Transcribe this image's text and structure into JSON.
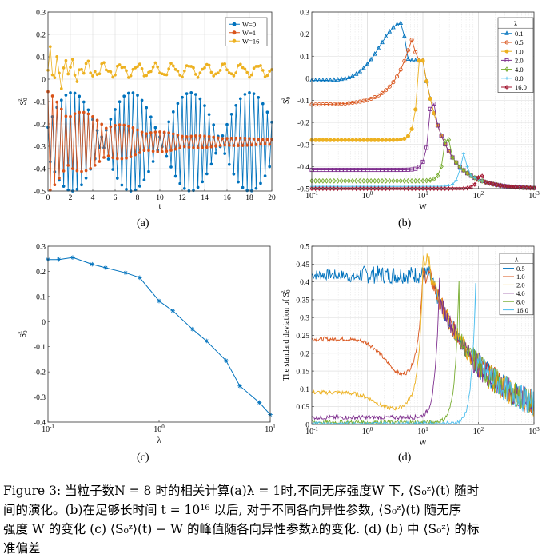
{
  "panels": [
    {
      "label": "(a)",
      "chart_data": {
        "type": "line",
        "xlabel": "t",
        "ylabel": "S_0^z",
        "xlim": [
          0,
          20
        ],
        "ylim": [
          -0.5,
          0.3
        ],
        "xticks": [
          "0",
          "2",
          "4",
          "6",
          "8",
          "10",
          "12",
          "14",
          "16",
          "18",
          "20"
        ],
        "yticks": [
          "-0.5",
          "-0.4",
          "-0.3",
          "-0.2",
          "-0.1",
          "0",
          "0.1",
          "0.2",
          "0.3"
        ],
        "legend_position": "top-right",
        "grid": true,
        "series": [
          {
            "name": "W=0",
            "color": "#0072BD",
            "marker": "o",
            "envelope_min": -0.5,
            "envelope_max": -0.06,
            "center": -0.28,
            "beat_period": 5.3
          },
          {
            "name": "W=1",
            "color": "#D95319",
            "marker": "o",
            "envelope_min": -0.5,
            "envelope_max": -0.06,
            "center": -0.28,
            "decay_time": 6
          },
          {
            "name": "W=16",
            "color": "#EDB120",
            "marker": "o",
            "envelope_min": -0.07,
            "envelope_max": 0.21,
            "center": 0.04,
            "decay_time": 2
          }
        ]
      }
    },
    {
      "label": "(b)",
      "chart_data": {
        "type": "line",
        "xlabel": "W",
        "ylabel": "S_0^z",
        "xscale": "log",
        "xlim": [
          0.1,
          1000
        ],
        "ylim": [
          -0.5,
          0.3
        ],
        "xticks": [
          "10^-1",
          "10^0",
          "10^1",
          "10^2",
          "10^3"
        ],
        "yticks": [
          "-0.5",
          "-0.4",
          "-0.3",
          "-0.2",
          "-0.1",
          "0",
          "0.1",
          "0.2",
          "0.3"
        ],
        "legend_title": "λ",
        "legend_position": "top-right",
        "grid": true,
        "series": [
          {
            "name": "0.1",
            "color": "#0072BD",
            "marker": "triangle",
            "base": -0.01,
            "peak_W": 4.2,
            "peak": 0.25
          },
          {
            "name": "0.5",
            "color": "#D95319",
            "marker": "circle",
            "base": -0.12,
            "peak_W": 6.2,
            "peak": 0.18
          },
          {
            "name": "1.0",
            "color": "#EDB120",
            "marker": "dot",
            "base": -0.28,
            "peak_W": 8.5,
            "peak": 0.08
          },
          {
            "name": "2.0",
            "color": "#7E2F8E",
            "marker": "square",
            "base": -0.415,
            "peak_W": 14,
            "peak": -0.08
          },
          {
            "name": "4.0",
            "color": "#77AC30",
            "marker": "diamond",
            "base": -0.465,
            "peak_W": 26,
            "peak": -0.24
          },
          {
            "name": "8.0",
            "color": "#4DBEEE",
            "marker": "plus",
            "base": -0.49,
            "peak_W": 52,
            "peak": -0.33
          },
          {
            "name": "16.0",
            "color": "#A2142F",
            "marker": "hexagram",
            "base": -0.5,
            "peak_W": 105,
            "peak": -0.43
          }
        ]
      }
    },
    {
      "label": "(c)",
      "chart_data": {
        "type": "line",
        "xlabel": "λ",
        "ylabel": "S_0^z",
        "xscale": "log",
        "xlim": [
          0.1,
          10
        ],
        "ylim": [
          -0.4,
          0.3
        ],
        "xticks": [
          "10^-1",
          "10^0",
          "10^1"
        ],
        "yticks": [
          "-0.4",
          "-0.3",
          "-0.2",
          "-0.1",
          "0",
          "0.1",
          "0.2",
          "0.3"
        ],
        "grid": false,
        "series": [
          {
            "color": "#0072BD",
            "marker": "asterisk",
            "x": [
              0.1,
              0.125,
              0.167,
              0.25,
              0.33,
              0.5,
              0.67,
              1.0,
              1.33,
              2.0,
              2.67,
              4.0,
              5.33,
              8.0,
              10.0
            ],
            "y": [
              0.247,
              0.247,
              0.255,
              0.228,
              0.214,
              0.194,
              0.175,
              0.082,
              0.043,
              -0.03,
              -0.077,
              -0.155,
              -0.256,
              -0.322,
              -0.37
            ]
          }
        ]
      }
    },
    {
      "label": "(d)",
      "chart_data": {
        "type": "line",
        "xlabel": "W",
        "ylabel": "The standard deviation of S_0^z",
        "xscale": "log",
        "xlim": [
          0.1,
          1000
        ],
        "ylim": [
          0,
          0.5
        ],
        "xticks": [
          "10^-1",
          "10^0",
          "10^1",
          "10^2",
          "10^3"
        ],
        "yticks": [
          "0",
          "0.05",
          "0.1",
          "0.15",
          "0.2",
          "0.25",
          "0.3",
          "0.35",
          "0.4",
          "0.45",
          "0.5"
        ],
        "legend_title": "λ",
        "legend_position": "top-right",
        "grid": true,
        "series": [
          {
            "name": "0.5",
            "color": "#0072BD",
            "base": 0.42,
            "dip_W": 3.2,
            "dip": 0.26,
            "rise_W": 0.7
          },
          {
            "name": "1.0",
            "color": "#D95319",
            "base": 0.24,
            "dip_W": 4.5,
            "dip": 0.14,
            "rise_W": 10
          },
          {
            "name": "2.0",
            "color": "#EDB120",
            "base": 0.09,
            "dip_W": 3,
            "dip": 0.045,
            "rise_W": 10
          },
          {
            "name": "4.0",
            "color": "#7E2F8E",
            "base": 0.02,
            "rise_W": 20
          },
          {
            "name": "8.0",
            "color": "#77AC30",
            "base": 0.006,
            "rise_W": 45
          },
          {
            "name": "16.0",
            "color": "#4DBEEE",
            "base": 0.002,
            "rise_W": 90
          }
        ]
      }
    }
  ],
  "caption": {
    "lines": [
      "Figure 3: 当粒子数N = 8 时的相关计算(a)λ = 1时,不同无序强度W 下, ⟨S₀ᶻ⟩(t) 随时",
      "间的演化。(b)在足够长时间 t = 10¹⁶ 以后, 对于不同各向异性参数, ⟨S₀ᶻ⟩(t) 随无序",
      "强度 W 的变化 (c) ⟨S₀ᶻ⟩(t) − W 的峰值随各向异性参数λ的变化. (d) (b) 中 ⟨S₀ᶻ⟩ 的标",
      "准偏差"
    ]
  }
}
